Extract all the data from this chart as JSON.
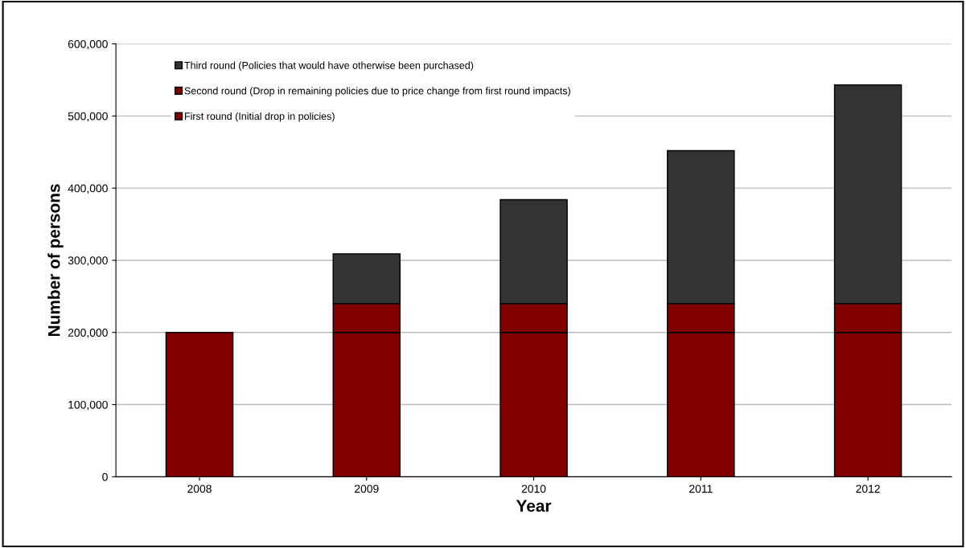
{
  "chart_data": {
    "type": "bar",
    "stacked": true,
    "xlabel": "Year",
    "ylabel": "Number of persons",
    "categories": [
      "2008",
      "2009",
      "2010",
      "2011",
      "2012"
    ],
    "series": [
      {
        "name": "First round (Initial drop in policies)",
        "color": "#800000",
        "values": [
          200000,
          200000,
          200000,
          200000,
          200000
        ]
      },
      {
        "name": "Second round (Drop in remaining policies due to price change from first round impacts)",
        "color": "#800000",
        "values": [
          null,
          40000,
          40000,
          40000,
          40000
        ]
      },
      {
        "name": "Third round (Policies that would have otherwise been purchased)",
        "color": "#333333",
        "values": [
          null,
          69000,
          144000,
          212000,
          303000
        ]
      }
    ],
    "ylim": [
      0,
      600000
    ],
    "yticks": [
      {
        "value": 0,
        "label": "0"
      },
      {
        "value": 100000,
        "label": "100,000"
      },
      {
        "value": 200000,
        "label": "200,000"
      },
      {
        "value": 300000,
        "label": "300,000"
      },
      {
        "value": 400000,
        "label": "400,000"
      },
      {
        "value": 500000,
        "label": "500,000"
      },
      {
        "value": 600000,
        "label": "600,000"
      }
    ],
    "grid": "y",
    "legend": "top left"
  }
}
